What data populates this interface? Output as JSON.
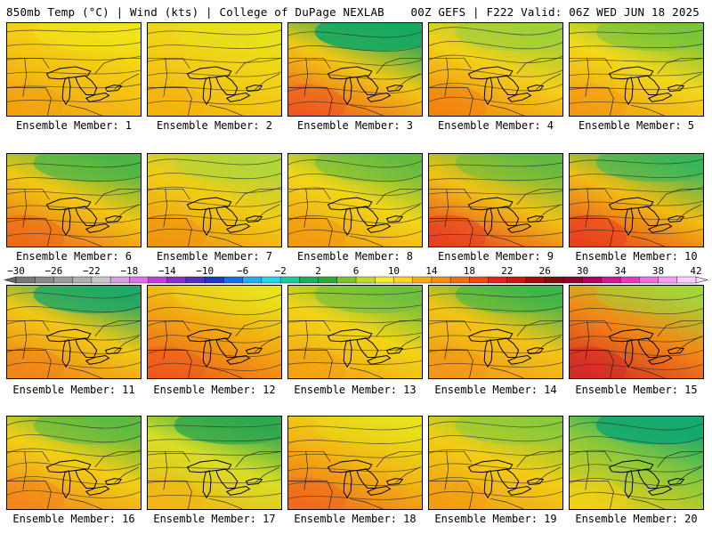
{
  "header": {
    "left": "850mb Temp (°C) | Wind (kts) | College of DuPage NEXLAB",
    "right": "00Z GEFS | F222 Valid: 06Z WED JUN 18 2025"
  },
  "members": [
    {
      "label": "Ensemble Member: 1",
      "palette": [
        "#f0e418",
        "#f4c612",
        "#f2a211"
      ],
      "green": 0.55
    },
    {
      "label": "Ensemble Member: 2",
      "palette": [
        "#e6e21a",
        "#f2cf16",
        "#f4b30d"
      ],
      "green": 0.45
    },
    {
      "label": "Ensemble Member: 3",
      "palette": [
        "#18a860",
        "#f0c814",
        "#ef5a1f"
      ],
      "green": 0.9
    },
    {
      "label": "Ensemble Member: 4",
      "palette": [
        "#9fd03a",
        "#f3d019",
        "#f28410"
      ],
      "green": 0.6
    },
    {
      "label": "Ensemble Member: 5",
      "palette": [
        "#78c43a",
        "#f2d81a",
        "#f39a12"
      ],
      "green": 0.6
    },
    {
      "label": "Ensemble Member: 6",
      "palette": [
        "#4cb646",
        "#f2c813",
        "#ee6a19"
      ],
      "green": 0.7
    },
    {
      "label": "Ensemble Member: 7",
      "palette": [
        "#b0d63a",
        "#f1cc14",
        "#f09511"
      ],
      "green": 0.5
    },
    {
      "label": "Ensemble Member: 8",
      "palette": [
        "#64bc3f",
        "#f2d617",
        "#f29a11"
      ],
      "green": 0.5
    },
    {
      "label": "Ensemble Member: 9",
      "palette": [
        "#62bb3e",
        "#f1c214",
        "#ea3f22"
      ],
      "green": 0.5
    },
    {
      "label": "Ensemble Member: 10",
      "palette": [
        "#38b65a",
        "#f1bd12",
        "#ea4021"
      ],
      "green": 0.6
    },
    {
      "label": "Ensemble Member: 11",
      "palette": [
        "#21a864",
        "#f2c814",
        "#f0831a"
      ],
      "green": 0.8
    },
    {
      "label": "Ensemble Member: 12",
      "palette": [
        "#e9e21a",
        "#f2a812",
        "#ee5a1c"
      ],
      "green": 0.3
    },
    {
      "label": "Ensemble Member: 13",
      "palette": [
        "#6fbf3d",
        "#f2d417",
        "#f3a213"
      ],
      "green": 0.6
    },
    {
      "label": "Ensemble Member: 14",
      "palette": [
        "#3fb54a",
        "#f2c416",
        "#f3961a"
      ],
      "green": 0.6
    },
    {
      "label": "Ensemble Member: 15",
      "palette": [
        "#a5d33b",
        "#f28a14",
        "#d42a27"
      ],
      "green": 0.35
    },
    {
      "label": "Ensemble Member: 16",
      "palette": [
        "#5dba41",
        "#f2cf16",
        "#f2871a"
      ],
      "green": 0.6
    },
    {
      "label": "Ensemble Member: 17",
      "palette": [
        "#2fa84e",
        "#d8de25",
        "#f2b515"
      ],
      "green": 0.8
    },
    {
      "label": "Ensemble Member: 18",
      "palette": [
        "#e7e21b",
        "#f2b713",
        "#ef6a1d"
      ],
      "green": 0.3
    },
    {
      "label": "Ensemble Member: 19",
      "palette": [
        "#8bca3b",
        "#f2cd15",
        "#f29d13"
      ],
      "green": 0.55
    },
    {
      "label": "Ensemble Member: 20",
      "palette": [
        "#14a86e",
        "#8dc93a",
        "#f2cf16"
      ],
      "green": 0.9
    }
  ],
  "colorbar": {
    "ticks": [
      "−30",
      "−26",
      "−22",
      "−18",
      "−14",
      "−10",
      "−6",
      "−2",
      "2",
      "6",
      "10",
      "14",
      "18",
      "22",
      "26",
      "30",
      "34",
      "38",
      "42"
    ],
    "colors": [
      "#777777",
      "#8a8a8a",
      "#9d9d9d",
      "#b0b0b0",
      "#c8c8c8",
      "#d9a0e0",
      "#e070e8",
      "#c040d8",
      "#8a30c8",
      "#5530c0",
      "#2038c8",
      "#1a70e0",
      "#20b0f0",
      "#20d8e8",
      "#20c8a0",
      "#18b060",
      "#30a838",
      "#80c030",
      "#c0d828",
      "#f0f020",
      "#f8d818",
      "#f8b010",
      "#f49010",
      "#f07010",
      "#f04818",
      "#e82020",
      "#c81818",
      "#a01010",
      "#801010",
      "#900030",
      "#b00060",
      "#d01890",
      "#e838c0",
      "#f070e0",
      "#f8a0f0",
      "#ffd0ff"
    ]
  }
}
